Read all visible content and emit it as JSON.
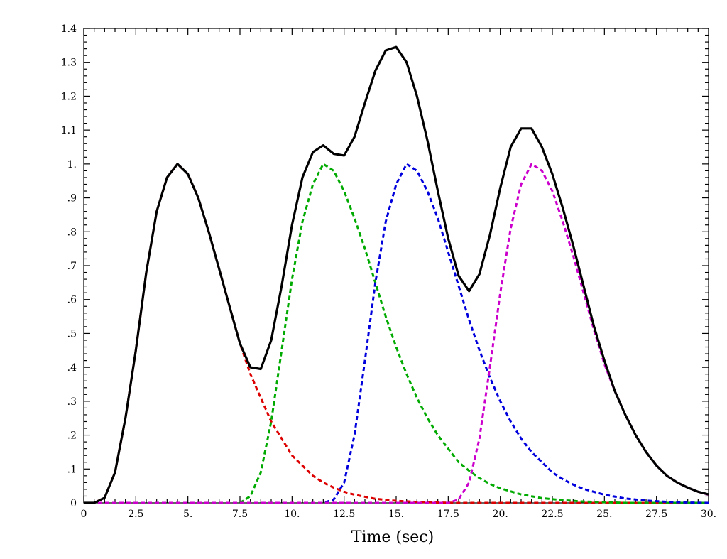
{
  "chart_data": {
    "type": "line",
    "title": "",
    "xlabel": "Time (sec)",
    "ylabel": "",
    "xlim": [
      0,
      30
    ],
    "ylim": [
      0,
      1.4
    ],
    "grid": false,
    "x_ticks": [
      {
        "value": 0,
        "label": "0"
      },
      {
        "value": 2.5,
        "label": "2.5"
      },
      {
        "value": 5,
        "label": "5."
      },
      {
        "value": 7.5,
        "label": "7.5"
      },
      {
        "value": 10,
        "label": "10."
      },
      {
        "value": 12.5,
        "label": "12.5"
      },
      {
        "value": 15,
        "label": "15."
      },
      {
        "value": 17.5,
        "label": "17.5"
      },
      {
        "value": 20,
        "label": "20."
      },
      {
        "value": 22.5,
        "label": "22.5"
      },
      {
        "value": 25,
        "label": "25."
      },
      {
        "value": 27.5,
        "label": "27.5"
      },
      {
        "value": 30,
        "label": "30."
      }
    ],
    "y_ticks": [
      {
        "value": 0,
        "label": "0"
      },
      {
        "value": 0.1,
        "label": ".1"
      },
      {
        "value": 0.2,
        "label": ".2"
      },
      {
        "value": 0.3,
        "label": ".3"
      },
      {
        "value": 0.4,
        "label": ".4"
      },
      {
        "value": 0.5,
        "label": ".5"
      },
      {
        "value": 0.6,
        "label": ".6"
      },
      {
        "value": 0.7,
        "label": ".7"
      },
      {
        "value": 0.8,
        "label": ".8"
      },
      {
        "value": 0.9,
        "label": ".9"
      },
      {
        "value": 1.0,
        "label": "1."
      },
      {
        "value": 1.1,
        "label": "1.1"
      },
      {
        "value": 1.2,
        "label": "1.2"
      },
      {
        "value": 1.3,
        "label": "1.3"
      },
      {
        "value": 1.4,
        "label": "1.4"
      }
    ],
    "series": [
      {
        "color": "#dd0000",
        "style": "dashed",
        "points": [
          [
            0,
            0
          ],
          [
            0.5,
            0
          ],
          [
            1.0,
            0.015
          ],
          [
            1.5,
            0.09
          ],
          [
            2.0,
            0.25
          ],
          [
            2.5,
            0.45
          ],
          [
            3.0,
            0.68
          ],
          [
            3.5,
            0.86
          ],
          [
            4.0,
            0.96
          ],
          [
            4.5,
            1.0
          ],
          [
            5.0,
            0.97
          ],
          [
            5.5,
            0.9
          ],
          [
            6.0,
            0.8
          ],
          [
            6.5,
            0.69
          ],
          [
            7.0,
            0.58
          ],
          [
            7.5,
            0.47
          ],
          [
            8.0,
            0.38
          ],
          [
            8.5,
            0.31
          ],
          [
            9.0,
            0.24
          ],
          [
            9.5,
            0.19
          ],
          [
            10.0,
            0.14
          ],
          [
            10.5,
            0.11
          ],
          [
            11.0,
            0.08
          ],
          [
            11.5,
            0.06
          ],
          [
            12.0,
            0.045
          ],
          [
            12.5,
            0.033
          ],
          [
            13.0,
            0.024
          ],
          [
            14.0,
            0.012
          ],
          [
            15.0,
            0.006
          ],
          [
            16.0,
            0.003
          ],
          [
            17.0,
            0.001
          ],
          [
            18.0,
            0
          ],
          [
            30.0,
            0
          ]
        ]
      },
      {
        "color": "#00aa00",
        "style": "dashed",
        "points": [
          [
            0,
            0
          ],
          [
            7.5,
            0
          ],
          [
            8.0,
            0.02
          ],
          [
            8.5,
            0.09
          ],
          [
            9.0,
            0.24
          ],
          [
            9.5,
            0.45
          ],
          [
            10.0,
            0.66
          ],
          [
            10.5,
            0.83
          ],
          [
            11.0,
            0.94
          ],
          [
            11.5,
            1.0
          ],
          [
            12.0,
            0.98
          ],
          [
            12.5,
            0.92
          ],
          [
            13.0,
            0.84
          ],
          [
            13.5,
            0.75
          ],
          [
            14.0,
            0.65
          ],
          [
            14.5,
            0.55
          ],
          [
            15.0,
            0.46
          ],
          [
            15.5,
            0.38
          ],
          [
            16.0,
            0.31
          ],
          [
            16.5,
            0.25
          ],
          [
            17.0,
            0.2
          ],
          [
            17.5,
            0.16
          ],
          [
            18.0,
            0.12
          ],
          [
            18.5,
            0.095
          ],
          [
            19.0,
            0.073
          ],
          [
            19.5,
            0.056
          ],
          [
            20.0,
            0.043
          ],
          [
            21.0,
            0.025
          ],
          [
            22.0,
            0.014
          ],
          [
            23.0,
            0.008
          ],
          [
            24.0,
            0.004
          ],
          [
            25.0,
            0.002
          ],
          [
            26.0,
            0
          ],
          [
            30.0,
            0
          ]
        ]
      },
      {
        "color": "#0000dd",
        "style": "dashed",
        "points": [
          [
            0,
            0
          ],
          [
            11.5,
            0
          ],
          [
            12.0,
            0.01
          ],
          [
            12.5,
            0.06
          ],
          [
            13.0,
            0.2
          ],
          [
            13.5,
            0.42
          ],
          [
            14.0,
            0.65
          ],
          [
            14.5,
            0.83
          ],
          [
            15.0,
            0.94
          ],
          [
            15.5,
            1.0
          ],
          [
            16.0,
            0.98
          ],
          [
            16.5,
            0.92
          ],
          [
            17.0,
            0.84
          ],
          [
            17.5,
            0.74
          ],
          [
            18.0,
            0.64
          ],
          [
            18.5,
            0.54
          ],
          [
            19.0,
            0.45
          ],
          [
            19.5,
            0.37
          ],
          [
            20.0,
            0.3
          ],
          [
            20.5,
            0.24
          ],
          [
            21.0,
            0.19
          ],
          [
            21.5,
            0.15
          ],
          [
            22.0,
            0.12
          ],
          [
            22.5,
            0.09
          ],
          [
            23.0,
            0.07
          ],
          [
            23.5,
            0.054
          ],
          [
            24.0,
            0.041
          ],
          [
            25.0,
            0.024
          ],
          [
            26.0,
            0.013
          ],
          [
            27.0,
            0.007
          ],
          [
            28.0,
            0.003
          ],
          [
            29.0,
            0.001
          ],
          [
            30.0,
            0
          ]
        ]
      },
      {
        "color": "#cc00cc",
        "style": "dashed",
        "points": [
          [
            0,
            0
          ],
          [
            17.5,
            0
          ],
          [
            18.0,
            0.01
          ],
          [
            18.5,
            0.06
          ],
          [
            19.0,
            0.19
          ],
          [
            19.5,
            0.4
          ],
          [
            20.0,
            0.62
          ],
          [
            20.5,
            0.81
          ],
          [
            21.0,
            0.94
          ],
          [
            21.5,
            1.0
          ],
          [
            22.0,
            0.98
          ],
          [
            22.5,
            0.92
          ],
          [
            23.0,
            0.83
          ],
          [
            23.5,
            0.73
          ],
          [
            24.0,
            0.62
          ],
          [
            24.5,
            0.51
          ],
          [
            25.0,
            0.41
          ],
          [
            25.5,
            0.33
          ],
          [
            26.0,
            0.26
          ],
          [
            26.5,
            0.2
          ],
          [
            27.0,
            0.15
          ],
          [
            27.5,
            0.11
          ],
          [
            28.0,
            0.08
          ],
          [
            28.5,
            0.06
          ],
          [
            29.0,
            0.045
          ],
          [
            29.5,
            0.033
          ],
          [
            30.0,
            0.024
          ]
        ]
      },
      {
        "color": "#000000",
        "style": "solid",
        "points": [
          [
            0,
            0
          ],
          [
            0.5,
            0
          ],
          [
            1.0,
            0.015
          ],
          [
            1.5,
            0.09
          ],
          [
            2.0,
            0.25
          ],
          [
            2.5,
            0.45
          ],
          [
            3.0,
            0.68
          ],
          [
            3.5,
            0.86
          ],
          [
            4.0,
            0.96
          ],
          [
            4.5,
            1.0
          ],
          [
            5.0,
            0.97
          ],
          [
            5.5,
            0.9
          ],
          [
            6.0,
            0.8
          ],
          [
            6.5,
            0.69
          ],
          [
            7.0,
            0.58
          ],
          [
            7.5,
            0.47
          ],
          [
            8.0,
            0.4
          ],
          [
            8.5,
            0.395
          ],
          [
            9.0,
            0.48
          ],
          [
            9.5,
            0.64
          ],
          [
            10.0,
            0.82
          ],
          [
            10.5,
            0.96
          ],
          [
            11.0,
            1.035
          ],
          [
            11.5,
            1.055
          ],
          [
            12.0,
            1.03
          ],
          [
            12.5,
            1.025
          ],
          [
            13.0,
            1.08
          ],
          [
            13.5,
            1.18
          ],
          [
            14.0,
            1.275
          ],
          [
            14.5,
            1.335
          ],
          [
            15.0,
            1.345
          ],
          [
            15.5,
            1.3
          ],
          [
            16.0,
            1.2
          ],
          [
            16.5,
            1.07
          ],
          [
            17.0,
            0.92
          ],
          [
            17.5,
            0.78
          ],
          [
            18.0,
            0.67
          ],
          [
            18.5,
            0.625
          ],
          [
            19.0,
            0.675
          ],
          [
            19.5,
            0.79
          ],
          [
            20.0,
            0.93
          ],
          [
            20.5,
            1.05
          ],
          [
            21.0,
            1.105
          ],
          [
            21.5,
            1.105
          ],
          [
            22.0,
            1.05
          ],
          [
            22.5,
            0.97
          ],
          [
            23.0,
            0.87
          ],
          [
            23.5,
            0.76
          ],
          [
            24.0,
            0.64
          ],
          [
            24.5,
            0.52
          ],
          [
            25.0,
            0.42
          ],
          [
            25.5,
            0.33
          ],
          [
            26.0,
            0.26
          ],
          [
            26.5,
            0.2
          ],
          [
            27.0,
            0.15
          ],
          [
            27.5,
            0.11
          ],
          [
            28.0,
            0.08
          ],
          [
            28.5,
            0.06
          ],
          [
            29.0,
            0.045
          ],
          [
            29.5,
            0.033
          ],
          [
            30.0,
            0.025
          ]
        ]
      }
    ]
  }
}
